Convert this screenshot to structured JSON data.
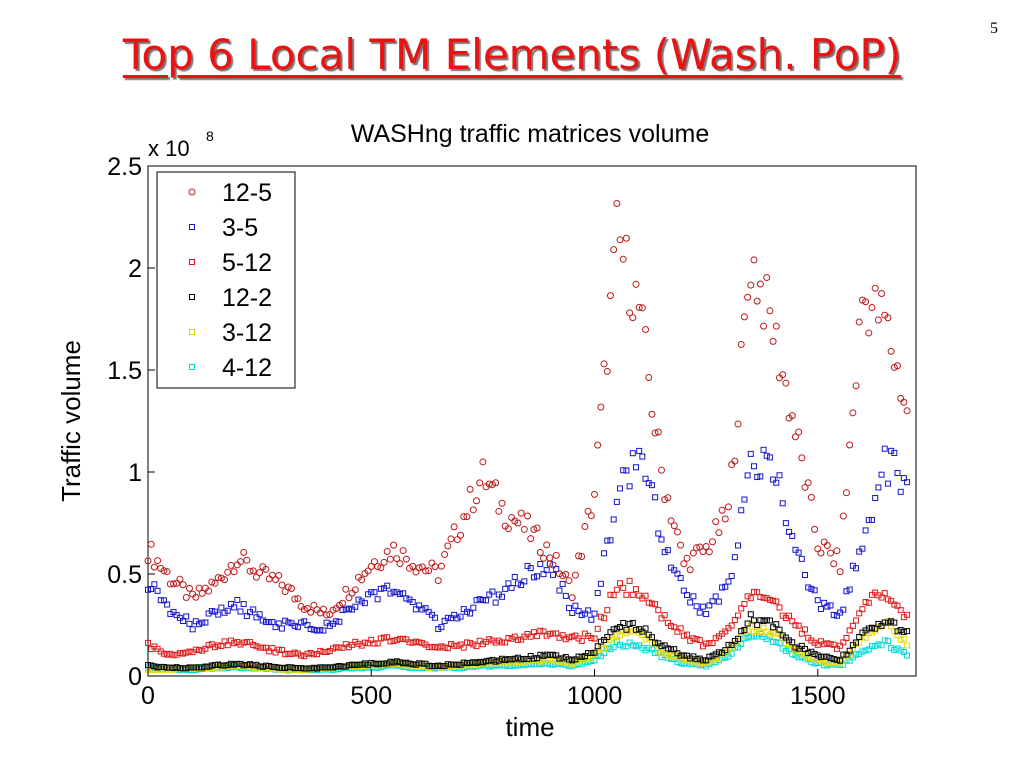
{
  "slide": {
    "title": "Top 6 Local TM Elements (Wash. PoP)",
    "number": "5"
  },
  "chart_data": {
    "type": "scatter",
    "title": "WASHng traffic matrices volume",
    "xlabel": "time",
    "ylabel": "Traffic volume",
    "y_exponent_label": "x 10",
    "y_exponent_power": "8",
    "xlim": [
      0,
      1720
    ],
    "ylim": [
      0,
      2.5
    ],
    "x_ticks": [
      0,
      500,
      1000,
      1500
    ],
    "x_tick_labels": [
      "0",
      "500",
      "1000",
      "1500"
    ],
    "y_ticks": [
      0,
      0.5,
      1,
      1.5,
      2,
      2.5
    ],
    "y_tick_labels": [
      "0",
      "0.5",
      "1",
      "1.5",
      "2",
      "2.5"
    ],
    "grid": false,
    "legend_position": "top-left",
    "x": [
      0,
      50,
      100,
      150,
      200,
      250,
      300,
      350,
      400,
      450,
      500,
      550,
      600,
      650,
      700,
      750,
      800,
      850,
      900,
      950,
      1000,
      1050,
      1100,
      1150,
      1200,
      1250,
      1300,
      1350,
      1400,
      1450,
      1500,
      1550,
      1600,
      1650,
      1700
    ],
    "series": [
      {
        "name": "12-5",
        "marker": "circle",
        "color": "#c01818",
        "values": [
          0.62,
          0.48,
          0.38,
          0.45,
          0.58,
          0.5,
          0.45,
          0.35,
          0.3,
          0.42,
          0.55,
          0.62,
          0.55,
          0.5,
          0.75,
          0.98,
          0.8,
          0.72,
          0.6,
          0.42,
          0.9,
          2.15,
          1.8,
          1.0,
          0.55,
          0.62,
          0.8,
          2.05,
          1.7,
          1.2,
          0.65,
          0.55,
          1.85,
          1.75,
          1.3
        ]
      },
      {
        "name": "3-5",
        "marker": "square",
        "color": "#1515d0",
        "values": [
          0.45,
          0.32,
          0.25,
          0.3,
          0.35,
          0.28,
          0.25,
          0.25,
          0.24,
          0.32,
          0.38,
          0.42,
          0.35,
          0.25,
          0.3,
          0.36,
          0.42,
          0.5,
          0.55,
          0.32,
          0.3,
          0.9,
          1.1,
          0.7,
          0.42,
          0.3,
          0.45,
          1.0,
          1.05,
          0.6,
          0.35,
          0.3,
          0.65,
          1.05,
          0.95
        ]
      },
      {
        "name": "5-12",
        "marker": "square",
        "color": "#e01818",
        "values": [
          0.15,
          0.1,
          0.12,
          0.15,
          0.17,
          0.14,
          0.12,
          0.1,
          0.12,
          0.15,
          0.17,
          0.18,
          0.16,
          0.14,
          0.15,
          0.16,
          0.18,
          0.2,
          0.22,
          0.18,
          0.2,
          0.45,
          0.42,
          0.3,
          0.2,
          0.15,
          0.22,
          0.4,
          0.38,
          0.25,
          0.16,
          0.14,
          0.35,
          0.4,
          0.3
        ]
      },
      {
        "name": "12-2",
        "marker": "square",
        "color": "#000000",
        "values": [
          0.05,
          0.04,
          0.04,
          0.05,
          0.06,
          0.05,
          0.04,
          0.04,
          0.04,
          0.05,
          0.06,
          0.07,
          0.06,
          0.05,
          0.06,
          0.07,
          0.08,
          0.09,
          0.1,
          0.08,
          0.12,
          0.25,
          0.24,
          0.15,
          0.1,
          0.08,
          0.14,
          0.28,
          0.26,
          0.15,
          0.1,
          0.08,
          0.2,
          0.26,
          0.22
        ]
      },
      {
        "name": "3-12",
        "marker": "square",
        "color": "#e8d800",
        "values": [
          0.03,
          0.03,
          0.04,
          0.04,
          0.05,
          0.04,
          0.03,
          0.03,
          0.04,
          0.05,
          0.05,
          0.06,
          0.05,
          0.04,
          0.05,
          0.06,
          0.07,
          0.07,
          0.08,
          0.06,
          0.1,
          0.2,
          0.22,
          0.12,
          0.08,
          0.06,
          0.12,
          0.24,
          0.22,
          0.12,
          0.07,
          0.06,
          0.18,
          0.28,
          0.15
        ]
      },
      {
        "name": "4-12",
        "marker": "square",
        "color": "#00d8d8",
        "values": [
          0.04,
          0.03,
          0.03,
          0.04,
          0.04,
          0.04,
          0.03,
          0.03,
          0.03,
          0.04,
          0.04,
          0.05,
          0.04,
          0.04,
          0.04,
          0.05,
          0.05,
          0.06,
          0.06,
          0.05,
          0.08,
          0.16,
          0.15,
          0.1,
          0.06,
          0.05,
          0.1,
          0.2,
          0.18,
          0.1,
          0.06,
          0.05,
          0.12,
          0.17,
          0.1
        ]
      }
    ]
  }
}
